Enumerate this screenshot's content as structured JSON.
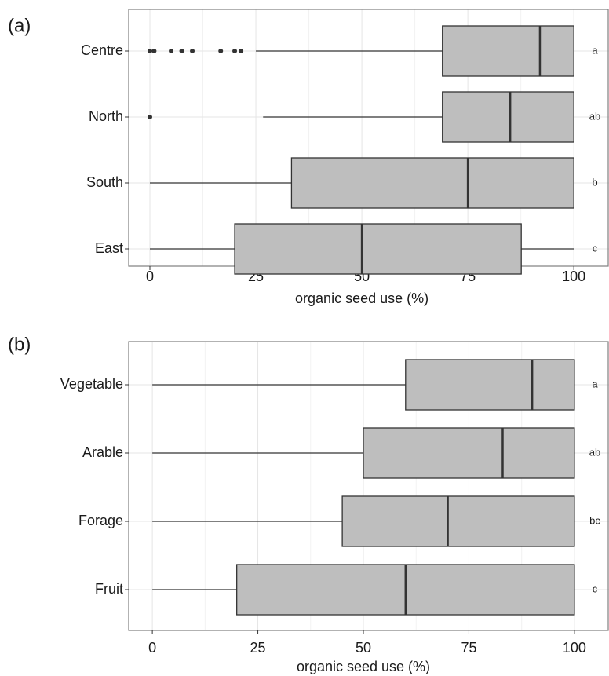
{
  "chart_data": [
    {
      "type": "box",
      "panel_label": "(a)",
      "x_label": "organic seed use (%)",
      "categories": [
        "Centre",
        "North",
        "South",
        "East"
      ],
      "whisker_low": [
        25,
        26.7,
        0,
        0
      ],
      "q1": [
        69,
        69,
        33.4,
        20
      ],
      "median": [
        92,
        85,
        75,
        50
      ],
      "q3": [
        100,
        100,
        100,
        87.6
      ],
      "whisker_high": [
        100,
        100,
        100,
        100
      ],
      "outliers": [
        [
          0,
          1,
          5,
          7.5,
          10,
          16.7,
          20,
          21.5
        ],
        [
          0
        ],
        [],
        []
      ],
      "letters": [
        "a",
        "ab",
        "b",
        "c"
      ],
      "color": "#bebebe",
      "xlim": [
        -5,
        108.3
      ],
      "xticks": [
        0,
        25,
        50,
        75,
        100
      ],
      "grid": true
    },
    {
      "type": "box",
      "panel_label": "(b)",
      "x_label": "organic seed use (%)",
      "categories": [
        "Vegetable",
        "Arable",
        "Forage",
        "Fruit"
      ],
      "whisker_low": [
        0,
        0,
        0,
        0
      ],
      "q1": [
        60,
        50,
        45,
        20
      ],
      "median": [
        90,
        83,
        70,
        60
      ],
      "q3": [
        100,
        100,
        100,
        100
      ],
      "whisker_high": [
        100,
        100,
        100,
        100
      ],
      "outliers": [
        [],
        [],
        [],
        []
      ],
      "letters": [
        "a",
        "ab",
        "bc",
        "c"
      ],
      "color": "#bebebe",
      "xlim": [
        -5.6,
        108.2
      ],
      "xticks": [
        0,
        25,
        50,
        75,
        100
      ],
      "grid": true
    }
  ]
}
